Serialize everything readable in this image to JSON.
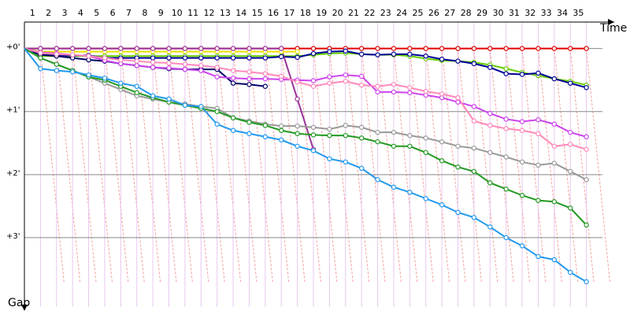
{
  "chart_data": {
    "type": "line",
    "x": [
      0,
      1,
      2,
      3,
      4,
      5,
      6,
      7,
      8,
      9,
      10,
      11,
      12,
      13,
      14,
      15,
      16,
      17,
      18,
      19,
      20,
      21,
      22,
      23,
      24,
      25,
      26,
      27,
      28,
      29,
      30,
      31,
      32,
      33,
      34,
      35
    ],
    "xlim": [
      0,
      36
    ],
    "xticks": [
      {
        "value": 0.5,
        "label": "1"
      },
      {
        "value": 1.5,
        "label": "2"
      },
      {
        "value": 2.5,
        "label": "3"
      },
      {
        "value": 3.5,
        "label": "4"
      },
      {
        "value": 4.5,
        "label": "5"
      },
      {
        "value": 5.5,
        "label": "6"
      },
      {
        "value": 6.5,
        "label": "7"
      },
      {
        "value": 7.5,
        "label": "8"
      },
      {
        "value": 8.5,
        "label": "9"
      },
      {
        "value": 9.5,
        "label": "10"
      },
      {
        "value": 10.5,
        "label": "11"
      },
      {
        "value": 11.5,
        "label": "12"
      },
      {
        "value": 12.5,
        "label": "13"
      },
      {
        "value": 13.5,
        "label": "14"
      },
      {
        "value": 14.5,
        "label": "15"
      },
      {
        "value": 15.5,
        "label": "16"
      },
      {
        "value": 16.5,
        "label": "17"
      },
      {
        "value": 17.5,
        "label": "18"
      },
      {
        "value": 18.5,
        "label": "19"
      },
      {
        "value": 19.5,
        "label": "20"
      },
      {
        "value": 20.5,
        "label": "21"
      },
      {
        "value": 21.5,
        "label": "22"
      },
      {
        "value": 22.5,
        "label": "23"
      },
      {
        "value": 23.5,
        "label": "24"
      },
      {
        "value": 24.5,
        "label": "25"
      },
      {
        "value": 25.5,
        "label": "26"
      },
      {
        "value": 26.5,
        "label": "27"
      },
      {
        "value": 27.5,
        "label": "28"
      },
      {
        "value": 28.5,
        "label": "29"
      },
      {
        "value": 29.5,
        "label": "30"
      },
      {
        "value": 30.5,
        "label": "31"
      },
      {
        "value": 31.5,
        "label": "32"
      },
      {
        "value": 32.5,
        "label": "33"
      },
      {
        "value": 33.5,
        "label": "34"
      },
      {
        "value": 34.5,
        "label": "35"
      }
    ],
    "ylim": [
      -0.42,
      4.1
    ],
    "yticks": [
      {
        "value": 0,
        "label": "+0'"
      },
      {
        "value": 1,
        "label": "+1'"
      },
      {
        "value": 2,
        "label": "+2'"
      },
      {
        "value": 3,
        "label": "+3'"
      }
    ],
    "x_label": "Time",
    "y_label": "Gap",
    "y_inverted": true,
    "grid": true,
    "series": [
      {
        "color": "#e00000",
        "values": [
          0,
          0,
          0,
          0,
          0,
          0,
          0,
          0,
          0,
          0,
          0,
          0,
          0,
          0,
          0,
          0,
          0,
          0,
          0,
          0,
          0,
          0,
          0,
          0,
          0,
          0,
          0,
          0,
          0,
          0,
          0,
          0,
          0,
          0,
          0,
          0
        ]
      },
      {
        "color": "#f0e000",
        "values": [
          0,
          0.05,
          0.05,
          0.05,
          0.05,
          0.05,
          0.05,
          0.05,
          0.05,
          0.05,
          0.05,
          0.05,
          0.05,
          0.05,
          0.05,
          0.05,
          0.05,
          0.05,
          null,
          null,
          null,
          null,
          null,
          null,
          null,
          null,
          null,
          null,
          null,
          null,
          null,
          null,
          null,
          null,
          null,
          null
        ]
      },
      {
        "color": "#66cc00",
        "values": [
          0,
          0.12,
          0.12,
          0.12,
          0.12,
          0.12,
          0.12,
          0.12,
          0.12,
          0.12,
          0.12,
          0.12,
          0.12,
          0.12,
          0.12,
          0.12,
          0.12,
          0.12,
          0.1,
          0.08,
          0.07,
          0.09,
          0.1,
          0.1,
          0.12,
          0.16,
          0.19,
          0.2,
          0.22,
          0.26,
          0.32,
          0.38,
          0.43,
          0.48,
          0.52,
          0.58
        ]
      },
      {
        "color": "#000099",
        "values": [
          0,
          0.1,
          0.11,
          0.11,
          0.11,
          0.15,
          0.15,
          0.15,
          0.15,
          0.15,
          0.15,
          0.15,
          0.15,
          0.15,
          0.15,
          0.15,
          0.13,
          0.14,
          0.08,
          0.05,
          0.04,
          0.09,
          0.1,
          0.09,
          0.09,
          0.12,
          0.17,
          0.2,
          0.24,
          0.3,
          0.4,
          0.41,
          0.39,
          0.48,
          0.55,
          0.62
        ]
      },
      {
        "color": "#000066",
        "values": [
          0,
          0.1,
          0.12,
          0.15,
          0.18,
          0.2,
          0.24,
          0.27,
          0.3,
          0.32,
          0.33,
          0.33,
          0.33,
          0.55,
          0.57,
          0.6,
          null,
          null,
          null,
          null,
          null,
          null,
          null,
          null,
          null,
          null,
          null,
          null,
          null,
          null,
          null,
          null,
          null,
          null,
          null,
          null
        ]
      },
      {
        "color": "#993399",
        "values": [
          0,
          0,
          0,
          0,
          0,
          0,
          0,
          0,
          0,
          0,
          0,
          0,
          0,
          0,
          0,
          0,
          0,
          0.8,
          1.6,
          null,
          null,
          null,
          null,
          null,
          null,
          null,
          null,
          null,
          null,
          null,
          null,
          null,
          null,
          null,
          null,
          null
        ]
      },
      {
        "color": "#cc44ee",
        "values": [
          0,
          0.06,
          0.08,
          0.1,
          0.12,
          0.19,
          0.24,
          0.27,
          0.3,
          0.31,
          0.33,
          0.35,
          0.45,
          0.47,
          0.48,
          0.48,
          0.49,
          0.5,
          0.51,
          0.45,
          0.42,
          0.44,
          0.69,
          0.69,
          0.7,
          0.74,
          0.78,
          0.85,
          0.92,
          1.03,
          1.12,
          1.16,
          1.13,
          1.2,
          1.33,
          1.4
        ]
      },
      {
        "color": "#ff88bb",
        "values": [
          0,
          0.07,
          0.09,
          0.1,
          0.12,
          0.15,
          0.18,
          0.2,
          0.22,
          0.23,
          0.25,
          0.27,
          0.3,
          0.35,
          0.37,
          0.4,
          0.44,
          0.53,
          0.6,
          0.55,
          0.52,
          0.58,
          0.6,
          0.57,
          0.62,
          0.68,
          0.72,
          0.78,
          1.15,
          1.22,
          1.27,
          1.3,
          1.35,
          1.55,
          1.52,
          1.6
        ]
      },
      {
        "color": "#999999",
        "values": [
          0,
          0.15,
          0.25,
          0.35,
          0.45,
          0.55,
          0.65,
          0.75,
          0.8,
          0.85,
          0.88,
          0.92,
          0.95,
          1.1,
          1.15,
          1.2,
          1.23,
          1.23,
          1.25,
          1.28,
          1.22,
          1.25,
          1.33,
          1.33,
          1.38,
          1.42,
          1.48,
          1.55,
          1.58,
          1.65,
          1.72,
          1.8,
          1.85,
          1.82,
          1.95,
          2.08
        ]
      },
      {
        "color": "#229922",
        "values": [
          0,
          0.15,
          0.25,
          0.35,
          0.45,
          0.5,
          0.6,
          0.7,
          0.78,
          0.85,
          0.9,
          0.95,
          1.0,
          1.1,
          1.17,
          1.22,
          1.3,
          1.35,
          1.37,
          1.38,
          1.38,
          1.42,
          1.48,
          1.55,
          1.55,
          1.65,
          1.78,
          1.88,
          1.95,
          2.13,
          2.23,
          2.33,
          2.41,
          2.43,
          2.53,
          2.8
        ]
      },
      {
        "color": "#2299ee",
        "values": [
          0,
          0.32,
          0.35,
          0.37,
          0.42,
          0.47,
          0.55,
          0.6,
          0.75,
          0.8,
          0.9,
          0.92,
          1.2,
          1.3,
          1.35,
          1.4,
          1.45,
          1.55,
          1.62,
          1.75,
          1.8,
          1.9,
          2.08,
          2.2,
          2.28,
          2.38,
          2.48,
          2.6,
          2.68,
          2.83,
          3.0,
          3.13,
          3.3,
          3.35,
          3.55,
          3.7
        ]
      }
    ]
  }
}
